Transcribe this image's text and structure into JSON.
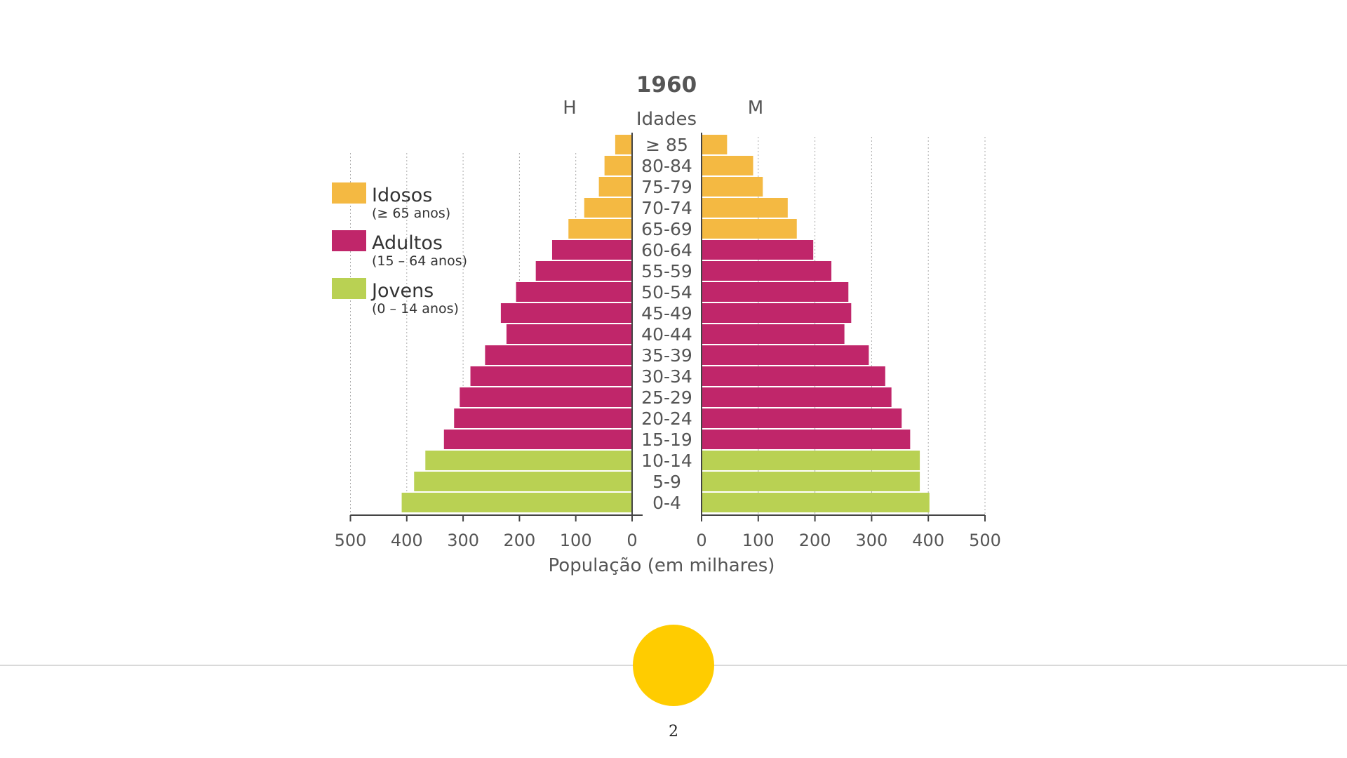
{
  "chart_data": {
    "type": "bar",
    "subtype": "population-pyramid",
    "title": "1960",
    "left_label": "H",
    "right_label": "M",
    "center_label": "Idades",
    "xlabel": "População (em milhares)",
    "xlim": [
      0,
      500
    ],
    "ticks": [
      "0",
      "100",
      "200",
      "300",
      "400",
      "500"
    ],
    "grid": true,
    "legend_position": "left",
    "categories": [
      "≥ 85",
      "80-84",
      "75-79",
      "70-74",
      "65-69",
      "60-64",
      "55-59",
      "50-54",
      "45-49",
      "40-44",
      "35-39",
      "30-34",
      "25-29",
      "20-24",
      "15-19",
      "10-14",
      "5-9",
      "0-4"
    ],
    "groups": [
      "Idosos",
      "Idosos",
      "Idosos",
      "Idosos",
      "Idosos",
      "Adultos",
      "Adultos",
      "Adultos",
      "Adultos",
      "Adultos",
      "Adultos",
      "Adultos",
      "Adultos",
      "Adultos",
      "Adultos",
      "Jovens",
      "Jovens",
      "Jovens"
    ],
    "series": [
      {
        "name": "H",
        "values": [
          30,
          49,
          59,
          85,
          113,
          142,
          171,
          206,
          233,
          223,
          261,
          287,
          306,
          316,
          334,
          367,
          387,
          409
        ]
      },
      {
        "name": "M",
        "values": [
          45,
          91,
          108,
          152,
          168,
          197,
          229,
          259,
          264,
          252,
          295,
          324,
          335,
          353,
          368,
          385,
          385,
          402
        ]
      }
    ],
    "legend": [
      {
        "key": "Idosos",
        "label": "Idosos",
        "sub": "(≥ 65 anos)",
        "color": "#F4B942"
      },
      {
        "key": "Adultos",
        "label": "Adultos",
        "sub": "(15 – 64 anos)",
        "color": "#C0266A"
      },
      {
        "key": "Jovens",
        "label": "Jovens",
        "sub": "(0 – 14 anos)",
        "color": "#B9D153"
      }
    ]
  },
  "footer": {
    "page_number": "2",
    "dot_color": "#FFCC00"
  }
}
